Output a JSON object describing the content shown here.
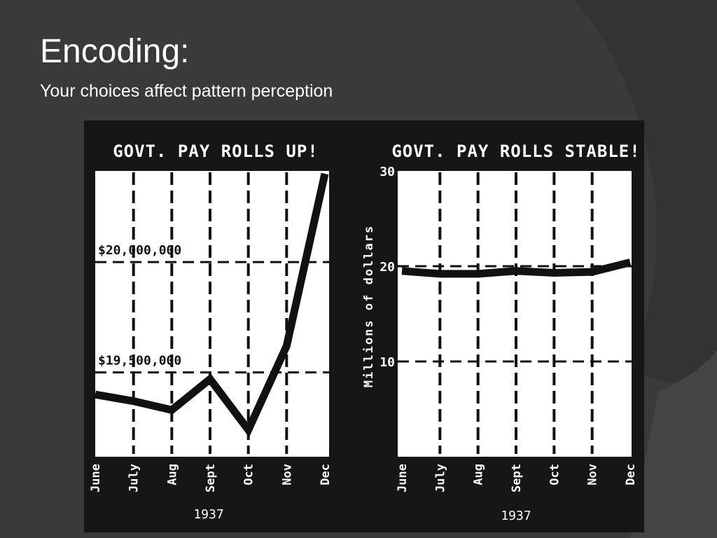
{
  "slide": {
    "title": "Encoding:",
    "subtitle": "Your choices affect pattern perception"
  },
  "colors": {
    "background": "#3a3a3a",
    "figure_background": "#161616",
    "plot_background": "#ffffff",
    "ink": "#111111"
  },
  "chart_data": [
    {
      "type": "line",
      "title": "GOVT. PAY ROLLS UP!",
      "categories": [
        "June",
        "July",
        "Aug",
        "Sept",
        "Oct",
        "Nov",
        "Dec"
      ],
      "year": "1937",
      "ylabel": "",
      "series": [
        {
          "values": [
            19400000,
            19370000,
            19330000,
            19470000,
            19240000,
            19620000,
            20400000
          ]
        }
      ],
      "ylim": [
        19150000,
        20400000
      ],
      "reference_lines": [
        {
          "value": 20000000,
          "label": "$20,000,000"
        },
        {
          "value": 19500000,
          "label": "$19,500,000"
        }
      ],
      "grid": "dashed vertical lines at each month"
    },
    {
      "type": "line",
      "title": "GOVT. PAY ROLLS STABLE!",
      "categories": [
        "June",
        "July",
        "Aug",
        "Sept",
        "Oct",
        "Nov",
        "Dec"
      ],
      "year": "1937",
      "ylabel": "Millions of dollars",
      "series": [
        {
          "values": [
            19.5,
            19.2,
            19.2,
            19.5,
            19.3,
            19.4,
            20.4
          ]
        }
      ],
      "ylim": [
        0,
        30
      ],
      "yticks": [
        10,
        20,
        30
      ],
      "grid": "dashed horizontal lines at 10 and 20, dashed vertical lines at each month"
    }
  ]
}
